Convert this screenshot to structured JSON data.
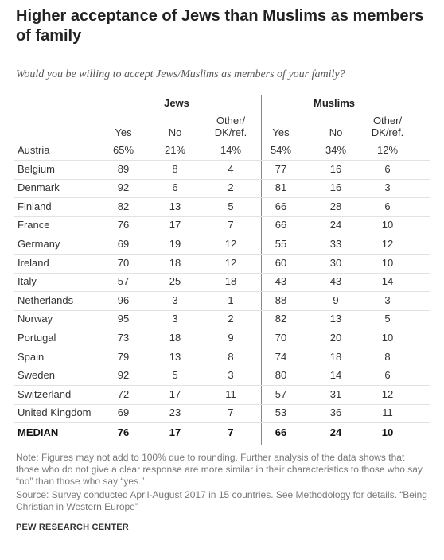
{
  "header": {
    "title": "Higher acceptance of Jews than Muslims as members of family",
    "subtitle": "Would you be willing to accept Jews/Muslims as members of your family?"
  },
  "table": {
    "groups": [
      "Jews",
      "Muslims"
    ],
    "columns": [
      "Yes",
      "No",
      "Other/\nDK/ref.",
      "Yes",
      "No",
      "Other/\nDK/ref."
    ],
    "rows": [
      [
        "Austria",
        "65%",
        "21%",
        "14%",
        "54%",
        "34%",
        "12%"
      ],
      [
        "Belgium",
        "89",
        "8",
        "4",
        "77",
        "16",
        "6"
      ],
      [
        "Denmark",
        "92",
        "6",
        "2",
        "81",
        "16",
        "3"
      ],
      [
        "Finland",
        "82",
        "13",
        "5",
        "66",
        "28",
        "6"
      ],
      [
        "France",
        "76",
        "17",
        "7",
        "66",
        "24",
        "10"
      ],
      [
        "Germany",
        "69",
        "19",
        "12",
        "55",
        "33",
        "12"
      ],
      [
        "Ireland",
        "70",
        "18",
        "12",
        "60",
        "30",
        "10"
      ],
      [
        "Italy",
        "57",
        "25",
        "18",
        "43",
        "43",
        "14"
      ],
      [
        "Netherlands",
        "96",
        "3",
        "1",
        "88",
        "9",
        "3"
      ],
      [
        "Norway",
        "95",
        "3",
        "2",
        "82",
        "13",
        "5"
      ],
      [
        "Portugal",
        "73",
        "18",
        "9",
        "70",
        "20",
        "10"
      ],
      [
        "Spain",
        "79",
        "13",
        "8",
        "74",
        "18",
        "8"
      ],
      [
        "Sweden",
        "92",
        "5",
        "3",
        "80",
        "14",
        "6"
      ],
      [
        "Switzerland",
        "72",
        "17",
        "11",
        "57",
        "31",
        "12"
      ],
      [
        "United Kingdom",
        "69",
        "23",
        "7",
        "53",
        "36",
        "11"
      ]
    ],
    "median": [
      "MEDIAN",
      "76",
      "17",
      "7",
      "66",
      "24",
      "10"
    ]
  },
  "footer": {
    "note": "Note: Figures may not add to 100% due to rounding. Further analysis of the data shows that those who do not give a clear response are more similar in their characteristics to those who say “no” than those who say “yes.”",
    "source": "Source: Survey conducted April-August 2017 in 15 countries. See Methodology for details. “Being Christian in Western Europe”",
    "credit": "PEW RESEARCH CENTER"
  }
}
